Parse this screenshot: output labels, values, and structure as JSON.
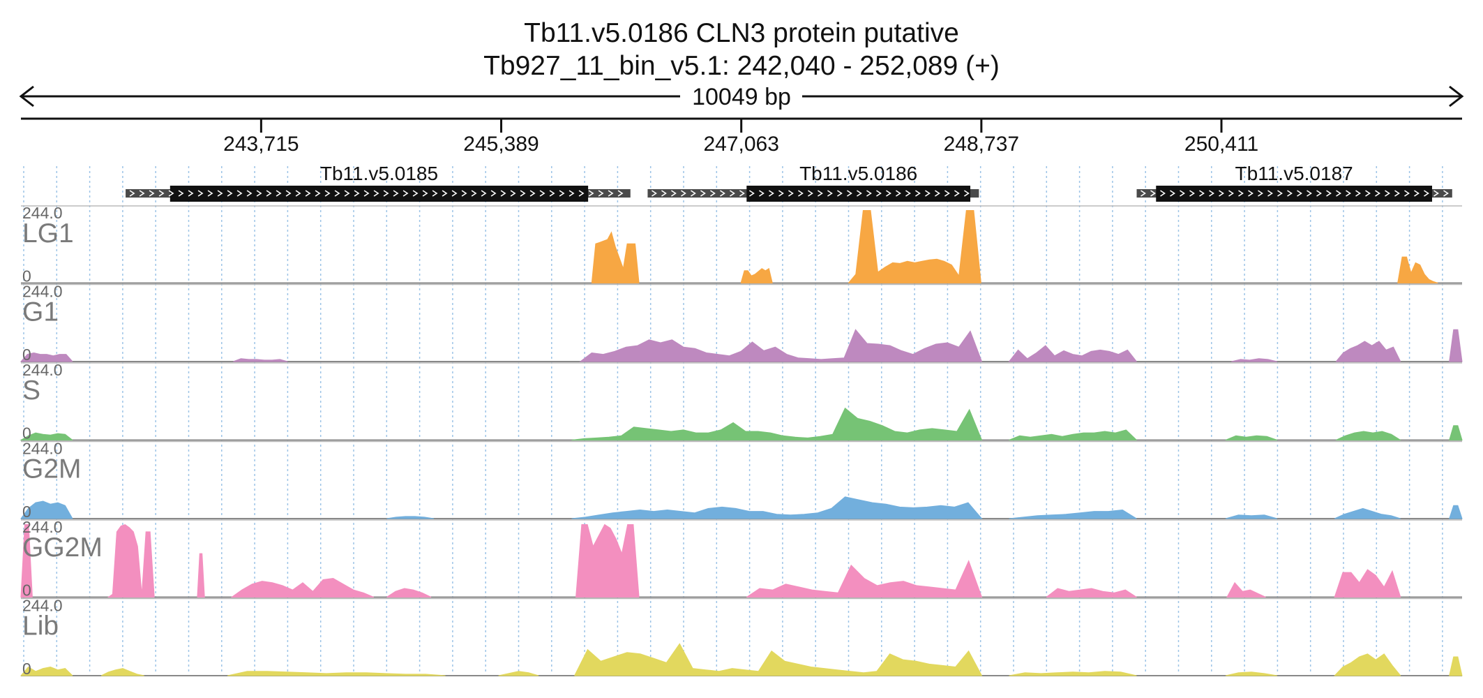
{
  "header": {
    "title_line1": "Tb11.v5.0186  CLN3 protein  putative",
    "title_line2": "Tb927_11_bin_v5.1: 242,040 - 252,089 (+)",
    "span_label": "10049 bp"
  },
  "region": {
    "chrom": "Tb927_11_bin_v5.1",
    "start": 242040,
    "end": 252089,
    "strand": "+"
  },
  "ticks": [
    "243,715",
    "245,389",
    "247,063",
    "248,737",
    "250,411"
  ],
  "tick_values": [
    243715,
    245389,
    247063,
    248737,
    250411
  ],
  "genes": [
    {
      "name": "Tb11.v5.0185",
      "start": 242770,
      "end": 246290,
      "cds_start": 243080,
      "cds_end": 245995
    },
    {
      "name": "Tb11.v5.0186",
      "start": 246410,
      "end": 248720,
      "cds_start": 247100,
      "cds_end": 248660
    },
    {
      "name": "Tb11.v5.0187",
      "start": 249820,
      "end": 252020,
      "cds_start": 249955,
      "cds_end": 251880
    }
  ],
  "tracks": [
    {
      "name": "LG1",
      "max": "244.0",
      "min": "0",
      "color": "#f7a743",
      "segments": [
        {
          "s": 246020,
          "e": 246350,
          "v": [
            0,
            0.54,
            0.56,
            0.58,
            0.6,
            0.7,
            0.5,
            0.35,
            0.2,
            0.54,
            0.54,
            0.54,
            0
          ]
        },
        {
          "s": 247060,
          "e": 247280,
          "v": [
            0,
            0.17,
            0.17,
            0.1,
            0.12,
            0.16,
            0.2,
            0.17,
            0.2,
            0
          ]
        },
        {
          "s": 247810,
          "e": 248735,
          "v": [
            0,
            0.12,
            1.0,
            1.0,
            0.15,
            0.22,
            0.28,
            0.27,
            0.3,
            0.28,
            0.3,
            0.32,
            0.33,
            0.3,
            0.25,
            0.1,
            1.0,
            1.0,
            0
          ]
        },
        {
          "s": 251640,
          "e": 251920,
          "v": [
            0,
            0.36,
            0.36,
            0.14,
            0.28,
            0.25,
            0.12,
            0.05,
            0.02,
            0
          ]
        }
      ]
    },
    {
      "name": "G1",
      "max": "244.0",
      "min": "0",
      "color": "#be89bf",
      "segments": [
        {
          "s": 242040,
          "e": 242400,
          "v": [
            0,
            0.1,
            0.12,
            0.1,
            0.1,
            0.08,
            0.1,
            0.1,
            0
          ]
        },
        {
          "s": 243520,
          "e": 243900,
          "v": [
            0,
            0.04,
            0.03,
            0.03,
            0.02,
            0.02,
            0.03,
            0
          ]
        },
        {
          "s": 245940,
          "e": 248740,
          "v": [
            0,
            0.12,
            0.1,
            0.14,
            0.2,
            0.22,
            0.3,
            0.26,
            0.3,
            0.2,
            0.18,
            0.12,
            0.1,
            0.08,
            0.14,
            0.27,
            0.15,
            0.2,
            0.1,
            0.05,
            0.04,
            0.03,
            0.04,
            0.05,
            0.44,
            0.25,
            0.24,
            0.22,
            0.15,
            0.1,
            0.18,
            0.24,
            0.26,
            0.2,
            0.42,
            0
          ]
        },
        {
          "s": 248930,
          "e": 249820,
          "v": [
            0,
            0.16,
            0.04,
            0.12,
            0.22,
            0.08,
            0.15,
            0.1,
            0.08,
            0.14,
            0.16,
            0.14,
            0.1,
            0.16,
            0
          ]
        },
        {
          "s": 250480,
          "e": 250800,
          "v": [
            0,
            0.03,
            0.02,
            0.04,
            0.03,
            0
          ]
        },
        {
          "s": 251210,
          "e": 251660,
          "v": [
            0,
            0.12,
            0.18,
            0.22,
            0.28,
            0.22,
            0.28,
            0.16,
            0.2,
            0
          ]
        },
        {
          "s": 252000,
          "e": 252089,
          "v": [
            0,
            0.44,
            0.44,
            0
          ]
        }
      ]
    },
    {
      "name": "S",
      "max": "244.0",
      "min": "0",
      "color": "#76c375",
      "segments": [
        {
          "s": 242040,
          "e": 242400,
          "v": [
            0,
            0.06,
            0.1,
            0.08,
            0.07,
            0.09,
            0.08,
            0
          ]
        },
        {
          "s": 245880,
          "e": 248740,
          "v": [
            0,
            0.02,
            0.03,
            0.04,
            0.06,
            0.18,
            0.16,
            0.14,
            0.12,
            0.14,
            0.1,
            0.1,
            0.14,
            0.24,
            0.12,
            0.12,
            0.1,
            0.06,
            0.04,
            0.03,
            0.05,
            0.08,
            0.44,
            0.3,
            0.26,
            0.2,
            0.12,
            0.1,
            0.14,
            0.16,
            0.14,
            0.12,
            0.42,
            0
          ]
        },
        {
          "s": 248930,
          "e": 249820,
          "v": [
            0,
            0.06,
            0.04,
            0.06,
            0.08,
            0.05,
            0.08,
            0.1,
            0.1,
            0.12,
            0.1,
            0.14,
            0
          ]
        },
        {
          "s": 250440,
          "e": 250800,
          "v": [
            0,
            0.06,
            0.04,
            0.06,
            0.05,
            0
          ]
        },
        {
          "s": 251210,
          "e": 251660,
          "v": [
            0,
            0.06,
            0.1,
            0.12,
            0.1,
            0.12,
            0.08,
            0
          ]
        },
        {
          "s": 252000,
          "e": 252089,
          "v": [
            0,
            0.2,
            0.2,
            0
          ]
        }
      ]
    },
    {
      "name": "G2M",
      "max": "244.0",
      "min": "0",
      "color": "#72afdd",
      "segments": [
        {
          "s": 242040,
          "e": 242400,
          "v": [
            0,
            0.14,
            0.22,
            0.24,
            0.2,
            0.22,
            0.18,
            0
          ]
        },
        {
          "s": 244590,
          "e": 244920,
          "v": [
            0,
            0.02,
            0.03,
            0.03,
            0.02,
            0
          ]
        },
        {
          "s": 245880,
          "e": 248740,
          "v": [
            0,
            0.02,
            0.05,
            0.08,
            0.1,
            0.12,
            0.1,
            0.12,
            0.1,
            0.08,
            0.14,
            0.16,
            0.14,
            0.1,
            0.1,
            0.06,
            0.05,
            0.06,
            0.08,
            0.14,
            0.3,
            0.26,
            0.22,
            0.2,
            0.16,
            0.15,
            0.16,
            0.18,
            0.16,
            0.22,
            0
          ]
        },
        {
          "s": 248930,
          "e": 249820,
          "v": [
            0,
            0.02,
            0.04,
            0.05,
            0.06,
            0.08,
            0.1,
            0.1,
            0.12,
            0
          ]
        },
        {
          "s": 250440,
          "e": 250800,
          "v": [
            0,
            0.05,
            0.04,
            0.05,
            0
          ]
        },
        {
          "s": 251200,
          "e": 251660,
          "v": [
            0,
            0.06,
            0.1,
            0.14,
            0.1,
            0.06,
            0.04,
            0
          ]
        },
        {
          "s": 252000,
          "e": 252089,
          "v": [
            0,
            0.18,
            0.18,
            0
          ]
        }
      ]
    },
    {
      "name": "GG2M",
      "max": "244.0",
      "min": "0",
      "color": "#f38fbf",
      "segments": [
        {
          "s": 242040,
          "e": 242120,
          "v": [
            0,
            1.0,
            1.0,
            0
          ]
        },
        {
          "s": 242650,
          "e": 242970,
          "v": [
            0,
            0.04,
            0.9,
            0.98,
            1.0,
            0.96,
            0.9,
            0.7,
            0.04,
            0.9,
            0.9,
            0
          ]
        },
        {
          "s": 243270,
          "e": 243320,
          "v": [
            0,
            0.6,
            0.6,
            0
          ]
        },
        {
          "s": 243510,
          "e": 244500,
          "v": [
            0,
            0.1,
            0.18,
            0.22,
            0.2,
            0.16,
            0.1,
            0.2,
            0.08,
            0.24,
            0.26,
            0.18,
            0.1,
            0.06,
            0
          ]
        },
        {
          "s": 244590,
          "e": 244900,
          "v": [
            0,
            0.08,
            0.12,
            0.1,
            0.06,
            0
          ]
        },
        {
          "s": 245910,
          "e": 246350,
          "v": [
            0,
            1.0,
            1.0,
            0.7,
            0.85,
            1.0,
            0.95,
            0.8,
            0.6,
            1.0,
            1.0,
            0
          ]
        },
        {
          "s": 247100,
          "e": 248740,
          "v": [
            0,
            0.12,
            0.1,
            0.18,
            0.14,
            0.1,
            0.08,
            0.06,
            0.44,
            0.26,
            0.16,
            0.2,
            0.22,
            0.16,
            0.14,
            0.12,
            0.1,
            0.5,
            0
          ]
        },
        {
          "s": 249190,
          "e": 249820,
          "v": [
            0,
            0.12,
            0.08,
            0.1,
            0.12,
            0.08,
            0.06,
            0.1,
            0
          ]
        },
        {
          "s": 250450,
          "e": 250720,
          "v": [
            0,
            0.2,
            0.08,
            0.1,
            0.05,
            0
          ]
        },
        {
          "s": 251200,
          "e": 251660,
          "v": [
            0,
            0.34,
            0.34,
            0.2,
            0.38,
            0.3,
            0.14,
            0.36,
            0
          ]
        }
      ]
    },
    {
      "name": "Lib",
      "max": "244.0",
      "min": "0",
      "color": "#e2d85e",
      "segments": [
        {
          "s": 242040,
          "e": 242400,
          "v": [
            0,
            0.12,
            0.06,
            0.1,
            0.12,
            0.08,
            0.1,
            0
          ]
        },
        {
          "s": 242600,
          "e": 242900,
          "v": [
            0,
            0.05,
            0.08,
            0.1,
            0.06,
            0.02,
            0
          ]
        },
        {
          "s": 243480,
          "e": 245000,
          "v": [
            0,
            0.06,
            0.06,
            0.05,
            0.04,
            0.03,
            0.04,
            0.04,
            0.03,
            0.02,
            0.02,
            0
          ]
        },
        {
          "s": 245370,
          "e": 245650,
          "v": [
            0,
            0.03,
            0.06,
            0.04,
            0
          ]
        },
        {
          "s": 245900,
          "e": 248740,
          "v": [
            0,
            0.36,
            0.2,
            0.26,
            0.32,
            0.3,
            0.24,
            0.18,
            0.44,
            0.1,
            0.08,
            0.06,
            0.1,
            0.08,
            0.06,
            0.34,
            0.2,
            0.16,
            0.12,
            0.1,
            0.08,
            0.06,
            0.04,
            0.06,
            0.3,
            0.22,
            0.2,
            0.16,
            0.14,
            0.12,
            0.34,
            0
          ]
        },
        {
          "s": 248930,
          "e": 249820,
          "v": [
            0,
            0.04,
            0.03,
            0.04,
            0.05,
            0.04,
            0.06,
            0.05,
            0
          ]
        },
        {
          "s": 250440,
          "e": 250800,
          "v": [
            0,
            0.04,
            0.05,
            0.03,
            0
          ]
        },
        {
          "s": 251200,
          "e": 251660,
          "v": [
            0,
            0.12,
            0.18,
            0.26,
            0.3,
            0.22,
            0.3,
            0.14,
            0
          ]
        },
        {
          "s": 252000,
          "e": 252089,
          "v": [
            0,
            0.26,
            0.26,
            0
          ]
        }
      ]
    }
  ]
}
